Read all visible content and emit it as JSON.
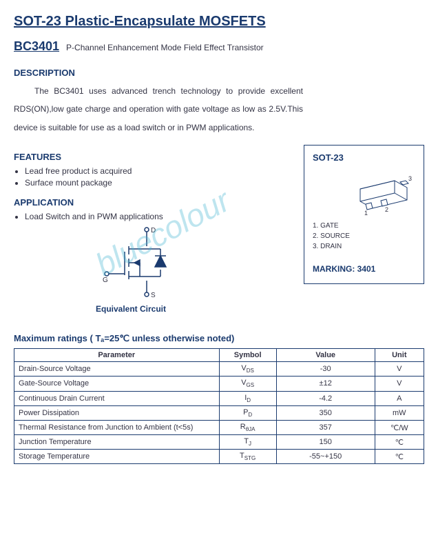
{
  "title": "SOT-23 Plastic-Encapsulate MOSFETS",
  "part": {
    "number": "BC3401",
    "desc": "P-Channel Enhancement Mode Field Effect Transistor"
  },
  "description": {
    "header": "DESCRIPTION",
    "text": "The BC3401 uses advanced trench technology to provide excellent RDS(ON),low gate charge and operation with gate voltage as low as 2.5V.This device is suitable for use as a load switch or in PWM applications."
  },
  "features": {
    "header": "FEATURES",
    "items": [
      "Lead free product is acquired",
      "Surface mount package"
    ]
  },
  "application": {
    "header": "APPLICATION",
    "items": [
      "Load Switch and in PWM applications"
    ]
  },
  "circuit": {
    "label": "Equivalent  Circuit",
    "pins": {
      "d": "D",
      "g": "G",
      "s": "S"
    }
  },
  "package": {
    "title": "SOT-23",
    "pins": [
      "1. GATE",
      "2. SOURCE",
      "3. DRAIN"
    ],
    "marking_label": "MARKING: 3401",
    "pin_numbers": {
      "p1": "1",
      "p2": "2",
      "p3": "3"
    }
  },
  "watermark": "bluecolour",
  "ratings": {
    "title": "Maximum ratings ( Tₐ=25℃ unless otherwise noted)",
    "columns": [
      "Parameter",
      "Symbol",
      "Value",
      "Unit"
    ],
    "rows": [
      {
        "param": "Drain-Source Voltage",
        "sym_main": "V",
        "sym_sub": "DS",
        "value": "-30",
        "unit": "V"
      },
      {
        "param": "Gate-Source Voltage",
        "sym_main": "V",
        "sym_sub": "GS",
        "value": "±12",
        "unit": "V"
      },
      {
        "param": "Continuous Drain Current",
        "sym_main": "I",
        "sym_sub": "D",
        "value": "-4.2",
        "unit": "A"
      },
      {
        "param": "Power Dissipation",
        "sym_main": "P",
        "sym_sub": "D",
        "value": "350",
        "unit": "mW"
      },
      {
        "param": "Thermal Resistance from Junction to Ambient    (t<5s)",
        "sym_main": "R",
        "sym_sub": "θJA",
        "value": "357",
        "unit": "℃/W"
      },
      {
        "param": "Junction Temperature",
        "sym_main": "T",
        "sym_sub": "J",
        "value": "150",
        "unit": "℃"
      },
      {
        "param": "Storage Temperature",
        "sym_main": "T",
        "sym_sub": "STG",
        "value": "-55~+150",
        "unit": "℃"
      }
    ]
  },
  "colors": {
    "primary": "#1a3a6e",
    "text": "#333344",
    "watermark": "rgba(70,180,210,0.35)",
    "background": "#ffffff"
  }
}
